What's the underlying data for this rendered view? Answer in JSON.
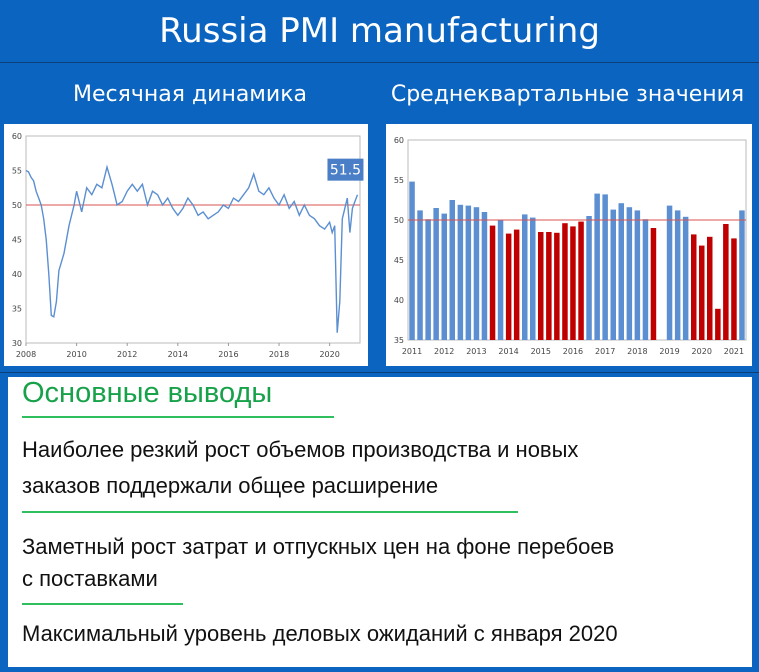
{
  "header": {
    "title": "Russia PMI manufacturing"
  },
  "subtitles": {
    "left": "Месячная динамика",
    "right": "Среднеквартальные значения"
  },
  "colors": {
    "line": "#5b8fd1",
    "ref": "#d9534f",
    "bar_up": "#5b8fd1",
    "bar_down": "#c00000",
    "green": "#17a24a",
    "callout": "#4a7ec6"
  },
  "chart_data": [
    {
      "type": "line",
      "title": "",
      "xlabel": "",
      "ylabel": "",
      "xlim": [
        2008,
        2021.2
      ],
      "ylim": [
        30,
        60
      ],
      "yticks": [
        "30",
        "35",
        "40",
        "45",
        "50",
        "55",
        "60"
      ],
      "xticks": [
        "2008",
        "2010",
        "2012",
        "2014",
        "2016",
        "2018",
        "2020"
      ],
      "reference_line": 50,
      "callout": "51.5",
      "x": [
        2008.0,
        2008.1,
        2008.2,
        2008.3,
        2008.4,
        2008.5,
        2008.6,
        2008.7,
        2008.8,
        2008.9,
        2009.0,
        2009.1,
        2009.2,
        2009.3,
        2009.5,
        2009.7,
        2009.9,
        2010.0,
        2010.2,
        2010.4,
        2010.6,
        2010.8,
        2011.0,
        2011.2,
        2011.4,
        2011.5,
        2011.6,
        2011.8,
        2012.0,
        2012.2,
        2012.4,
        2012.6,
        2012.8,
        2013.0,
        2013.2,
        2013.4,
        2013.6,
        2013.8,
        2014.0,
        2014.2,
        2014.4,
        2014.6,
        2014.8,
        2015.0,
        2015.2,
        2015.4,
        2015.6,
        2015.8,
        2016.0,
        2016.2,
        2016.4,
        2016.6,
        2016.8,
        2017.0,
        2017.2,
        2017.4,
        2017.6,
        2017.8,
        2018.0,
        2018.2,
        2018.4,
        2018.6,
        2018.8,
        2019.0,
        2019.2,
        2019.4,
        2019.6,
        2019.8,
        2020.0,
        2020.1,
        2020.2,
        2020.3,
        2020.4,
        2020.5,
        2020.6,
        2020.7,
        2020.8,
        2020.9,
        2021.0,
        2021.1
      ],
      "values": [
        55.0,
        54.8,
        54.0,
        53.5,
        52.0,
        51.0,
        50.0,
        48.0,
        45.0,
        40.0,
        34.0,
        33.8,
        36.0,
        40.5,
        43.0,
        47.0,
        50.0,
        52.0,
        49.0,
        52.5,
        51.5,
        53.0,
        52.5,
        55.5,
        53.0,
        51.5,
        50.0,
        50.5,
        52.0,
        53.0,
        52.0,
        53.0,
        50.0,
        52.0,
        51.5,
        50.0,
        51.0,
        49.5,
        48.5,
        49.5,
        51.0,
        50.0,
        48.5,
        49.0,
        48.0,
        48.5,
        49.0,
        50.0,
        49.5,
        51.0,
        50.5,
        51.5,
        52.5,
        54.5,
        52.0,
        51.5,
        52.5,
        51.0,
        50.0,
        51.5,
        49.5,
        50.5,
        48.5,
        50.0,
        48.5,
        48.0,
        47.0,
        46.5,
        47.5,
        46.0,
        47.0,
        31.5,
        36.0,
        48.0,
        49.5,
        51.0,
        46.0,
        49.5,
        50.5,
        51.5
      ]
    },
    {
      "type": "bar",
      "title": "",
      "xlabel": "",
      "ylabel": "",
      "ylim": [
        35,
        60
      ],
      "yticks": [
        "35",
        "40",
        "45",
        "50",
        "55",
        "60"
      ],
      "xticks": [
        "2011",
        "2012",
        "2013",
        "2014",
        "2015",
        "2016",
        "2017",
        "2018",
        "2019",
        "2020",
        "2021"
      ],
      "reference_line": 50,
      "values": [
        54.8,
        51.2,
        50.1,
        51.5,
        50.8,
        52.5,
        51.9,
        51.8,
        51.6,
        51.0,
        49.3,
        50.0,
        48.3,
        48.8,
        50.7,
        50.3,
        48.5,
        48.5,
        48.4,
        49.6,
        49.2,
        49.8,
        50.5,
        53.3,
        53.2,
        51.3,
        52.1,
        51.6,
        51.2,
        50.1,
        49.0,
        null,
        51.8,
        51.2,
        50.4,
        48.2,
        46.8,
        47.9,
        38.9,
        49.5,
        47.7,
        51.2
      ]
    }
  ],
  "conclusions": {
    "heading": "Основные выводы",
    "items": [
      {
        "line1": "Наиболее резкий рост объемов производства и новых",
        "line2": "заказов поддержали общее расширение"
      },
      {
        "line1": "Заметный рост затрат и отпускных цен на фоне перебоев",
        "line2": "с поставками"
      },
      {
        "line1": "Максимальный уровень деловых ожиданий с января 2020",
        "line2": ""
      }
    ]
  }
}
